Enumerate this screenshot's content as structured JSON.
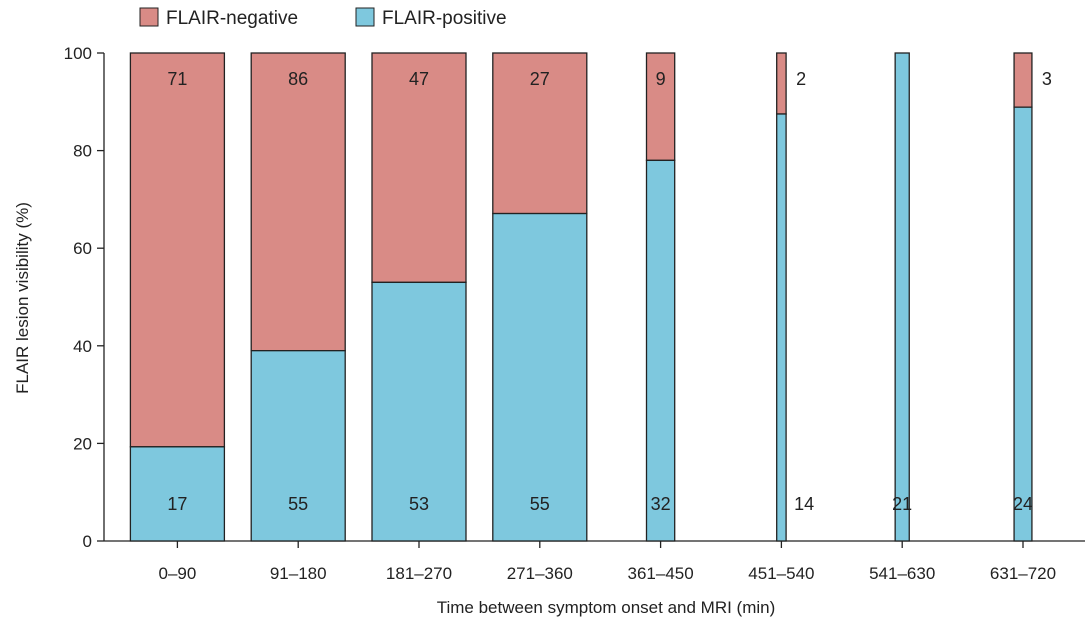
{
  "chart_data": {
    "type": "bar",
    "stacked": true,
    "normalized": true,
    "xlabel": "Time between symptom onset and MRI (min)",
    "ylabel": "FLAIR lesion visibility (%)",
    "ylim": [
      0,
      100
    ],
    "yticks": [
      0,
      20,
      40,
      60,
      80,
      100
    ],
    "grid": false,
    "legend_position": "top-left",
    "categories": [
      "0–90",
      "91–180",
      "181–270",
      "271–360",
      "361–450",
      "451–540",
      "541–630",
      "631–720"
    ],
    "bar_width_relative": [
      1,
      1,
      1,
      1,
      0.3,
      0.1,
      0.15,
      0.19
    ],
    "series": [
      {
        "name": "FLAIR-positive",
        "color": "#7ec8de",
        "counts": [
          17,
          55,
          53,
          55,
          32,
          14,
          21,
          24
        ],
        "percent": [
          19.3,
          39.0,
          53.0,
          67.1,
          78.0,
          87.5,
          100,
          88.9
        ]
      },
      {
        "name": "FLAIR-negative",
        "color": "#d98b86",
        "counts": [
          71,
          86,
          47,
          27,
          9,
          2,
          0,
          3
        ],
        "percent": [
          80.7,
          61.0,
          47.0,
          32.9,
          22.0,
          12.5,
          0,
          11.1
        ]
      }
    ]
  }
}
